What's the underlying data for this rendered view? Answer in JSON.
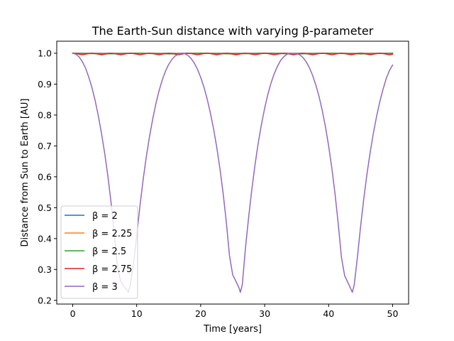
{
  "chart_data": {
    "type": "line",
    "title": "The Earth-Sun distance with varying β-parameter",
    "xlabel": "Time [years]",
    "ylabel": "Distance from Sun to Earth [AU]",
    "xlim": [
      -2.5,
      52.5
    ],
    "ylim": [
      0.188,
      1.039
    ],
    "xticks": [
      0,
      10,
      20,
      30,
      40,
      50
    ],
    "yticks": [
      0.2,
      0.3,
      0.4,
      0.5,
      0.6,
      0.7,
      0.8,
      0.9,
      1.0
    ],
    "xtick_labels": [
      "0",
      "10",
      "20",
      "30",
      "40",
      "50"
    ],
    "ytick_labels": [
      "0.2",
      "0.3",
      "0.4",
      "0.5",
      "0.6",
      "0.7",
      "0.8",
      "0.9",
      "1.0"
    ],
    "legend_position": "lower-left",
    "grid": false,
    "series": [
      {
        "name": "β = 2",
        "color": "#1f77b4",
        "x": [
          0,
          5,
          10,
          15,
          20,
          25,
          30,
          35,
          40,
          45,
          50
        ],
        "y": [
          1.0,
          1.0,
          1.0,
          1.0,
          1.0,
          1.0,
          1.0,
          1.0,
          1.0,
          1.0,
          1.0
        ]
      },
      {
        "name": "β = 2.25",
        "color": "#ff7f0e",
        "x": [
          0,
          5,
          10,
          15,
          20,
          25,
          30,
          35,
          40,
          45,
          50
        ],
        "y": [
          1.0,
          0.999,
          1.0,
          0.999,
          1.0,
          0.999,
          1.0,
          0.999,
          1.0,
          0.999,
          1.0
        ]
      },
      {
        "name": "β = 2.5",
        "color": "#2ca02c",
        "x": [
          0,
          5,
          10,
          15,
          20,
          25,
          30,
          35,
          40,
          45,
          50
        ],
        "y": [
          1.0,
          0.998,
          1.0,
          0.998,
          1.0,
          0.998,
          1.0,
          0.998,
          1.0,
          0.998,
          1.0
        ]
      },
      {
        "name": "β = 2.75",
        "color": "#d62728",
        "x": [
          0,
          0.5,
          1,
          1.5,
          2,
          2.5,
          3,
          3.5,
          4,
          4.5,
          5,
          5.5,
          6,
          6.5,
          7,
          7.5,
          8,
          8.5,
          9,
          9.5,
          10,
          10.5,
          11,
          11.5,
          12,
          12.5,
          13,
          13.5,
          14,
          14.5,
          15,
          15.5,
          16,
          16.5,
          17,
          17.5,
          18,
          18.5,
          19,
          19.5,
          20,
          20.5,
          21,
          21.5,
          22,
          22.5,
          23,
          23.5,
          24,
          24.5,
          25,
          25.5,
          26,
          26.5,
          27,
          27.5,
          28,
          28.5,
          29,
          29.5,
          30,
          30.5,
          31,
          31.5,
          32,
          32.5,
          33,
          33.5,
          34,
          34.5,
          35,
          35.5,
          36,
          36.5,
          37,
          37.5,
          38,
          38.5,
          39,
          39.5,
          40,
          40.5,
          41,
          41.5,
          42,
          42.5,
          43,
          43.5,
          44,
          44.5,
          45,
          45.5,
          46,
          46.5,
          47,
          47.5,
          48,
          48.5,
          49,
          49.5,
          50
        ],
        "y": [
          1.0,
          0.999,
          0.997,
          0.995,
          0.997,
          0.999,
          1.0,
          0.999,
          0.997,
          0.995,
          0.997,
          0.999,
          1.0,
          0.999,
          0.997,
          0.995,
          0.997,
          0.999,
          1.0,
          0.999,
          0.997,
          0.995,
          0.997,
          0.999,
          1.0,
          0.999,
          0.997,
          0.995,
          0.997,
          0.999,
          1.0,
          0.999,
          0.997,
          0.995,
          0.997,
          0.999,
          1.0,
          0.999,
          0.997,
          0.995,
          0.997,
          0.999,
          1.0,
          0.999,
          0.997,
          0.995,
          0.997,
          0.999,
          1.0,
          0.999,
          0.997,
          0.995,
          0.997,
          0.999,
          1.0,
          0.999,
          0.997,
          0.995,
          0.997,
          0.999,
          1.0,
          0.999,
          0.997,
          0.995,
          0.997,
          0.999,
          1.0,
          0.999,
          0.997,
          0.995,
          0.997,
          0.999,
          1.0,
          0.999,
          0.997,
          0.995,
          0.997,
          0.999,
          1.0,
          0.999,
          0.997,
          0.995,
          0.997,
          0.999,
          1.0,
          0.999,
          0.997,
          0.995,
          0.997,
          0.999,
          1.0,
          0.999,
          0.997,
          0.995,
          0.997,
          0.999,
          1.0,
          0.999,
          0.997,
          0.995,
          0.997
        ]
      },
      {
        "name": "β = 3",
        "color": "#9467bd",
        "x": [
          0,
          0.5,
          1,
          1.5,
          2,
          2.5,
          3,
          3.5,
          4,
          4.5,
          5,
          5.5,
          6,
          6.5,
          7,
          7.5,
          8,
          8.5,
          8.7,
          9,
          9.5,
          10,
          10.5,
          11,
          11.5,
          12,
          12.5,
          13,
          13.5,
          14,
          14.5,
          15,
          15.5,
          16,
          16.5,
          17,
          17.5,
          18,
          18.5,
          19,
          19.5,
          20,
          20.5,
          21,
          21.5,
          22,
          22.5,
          23,
          23.5,
          24,
          24.5,
          25,
          25.5,
          26,
          26.2,
          26.5,
          27,
          27.5,
          28,
          28.5,
          29,
          29.5,
          30,
          30.5,
          31,
          31.5,
          32,
          32.5,
          33,
          33.5,
          34,
          34.5,
          35,
          35.5,
          36,
          36.5,
          37,
          37.5,
          38,
          38.5,
          39,
          39.5,
          40,
          40.5,
          41,
          41.5,
          42,
          42.5,
          43,
          43.5,
          43.7,
          44,
          44.5,
          45,
          45.5,
          46,
          46.5,
          47,
          47.5,
          48,
          48.5,
          49,
          49.5,
          50
        ],
        "y": [
          1.0,
          0.997,
          0.988,
          0.973,
          0.952,
          0.923,
          0.889,
          0.847,
          0.797,
          0.74,
          0.675,
          0.601,
          0.515,
          0.418,
          0.305,
          0.262,
          0.245,
          0.233,
          0.226,
          0.25,
          0.32,
          0.41,
          0.505,
          0.59,
          0.665,
          0.73,
          0.787,
          0.837,
          0.879,
          0.914,
          0.942,
          0.964,
          0.98,
          0.991,
          0.997,
          1.0,
          0.999,
          0.993,
          0.983,
          0.968,
          0.948,
          0.922,
          0.891,
          0.853,
          0.808,
          0.757,
          0.697,
          0.628,
          0.548,
          0.455,
          0.345,
          0.283,
          0.262,
          0.24,
          0.226,
          0.25,
          0.37,
          0.47,
          0.56,
          0.64,
          0.71,
          0.77,
          0.822,
          0.867,
          0.904,
          0.934,
          0.958,
          0.977,
          0.989,
          0.997,
          1.0,
          0.998,
          0.999,
          0.995,
          0.986,
          0.972,
          0.953,
          0.928,
          0.897,
          0.86,
          0.815,
          0.762,
          0.7,
          0.628,
          0.545,
          0.448,
          0.34,
          0.28,
          0.258,
          0.236,
          0.226,
          0.25,
          0.34,
          0.44,
          0.53,
          0.61,
          0.68,
          0.742,
          0.796,
          0.843,
          0.883,
          0.918,
          0.944,
          0.962
        ]
      }
    ]
  }
}
